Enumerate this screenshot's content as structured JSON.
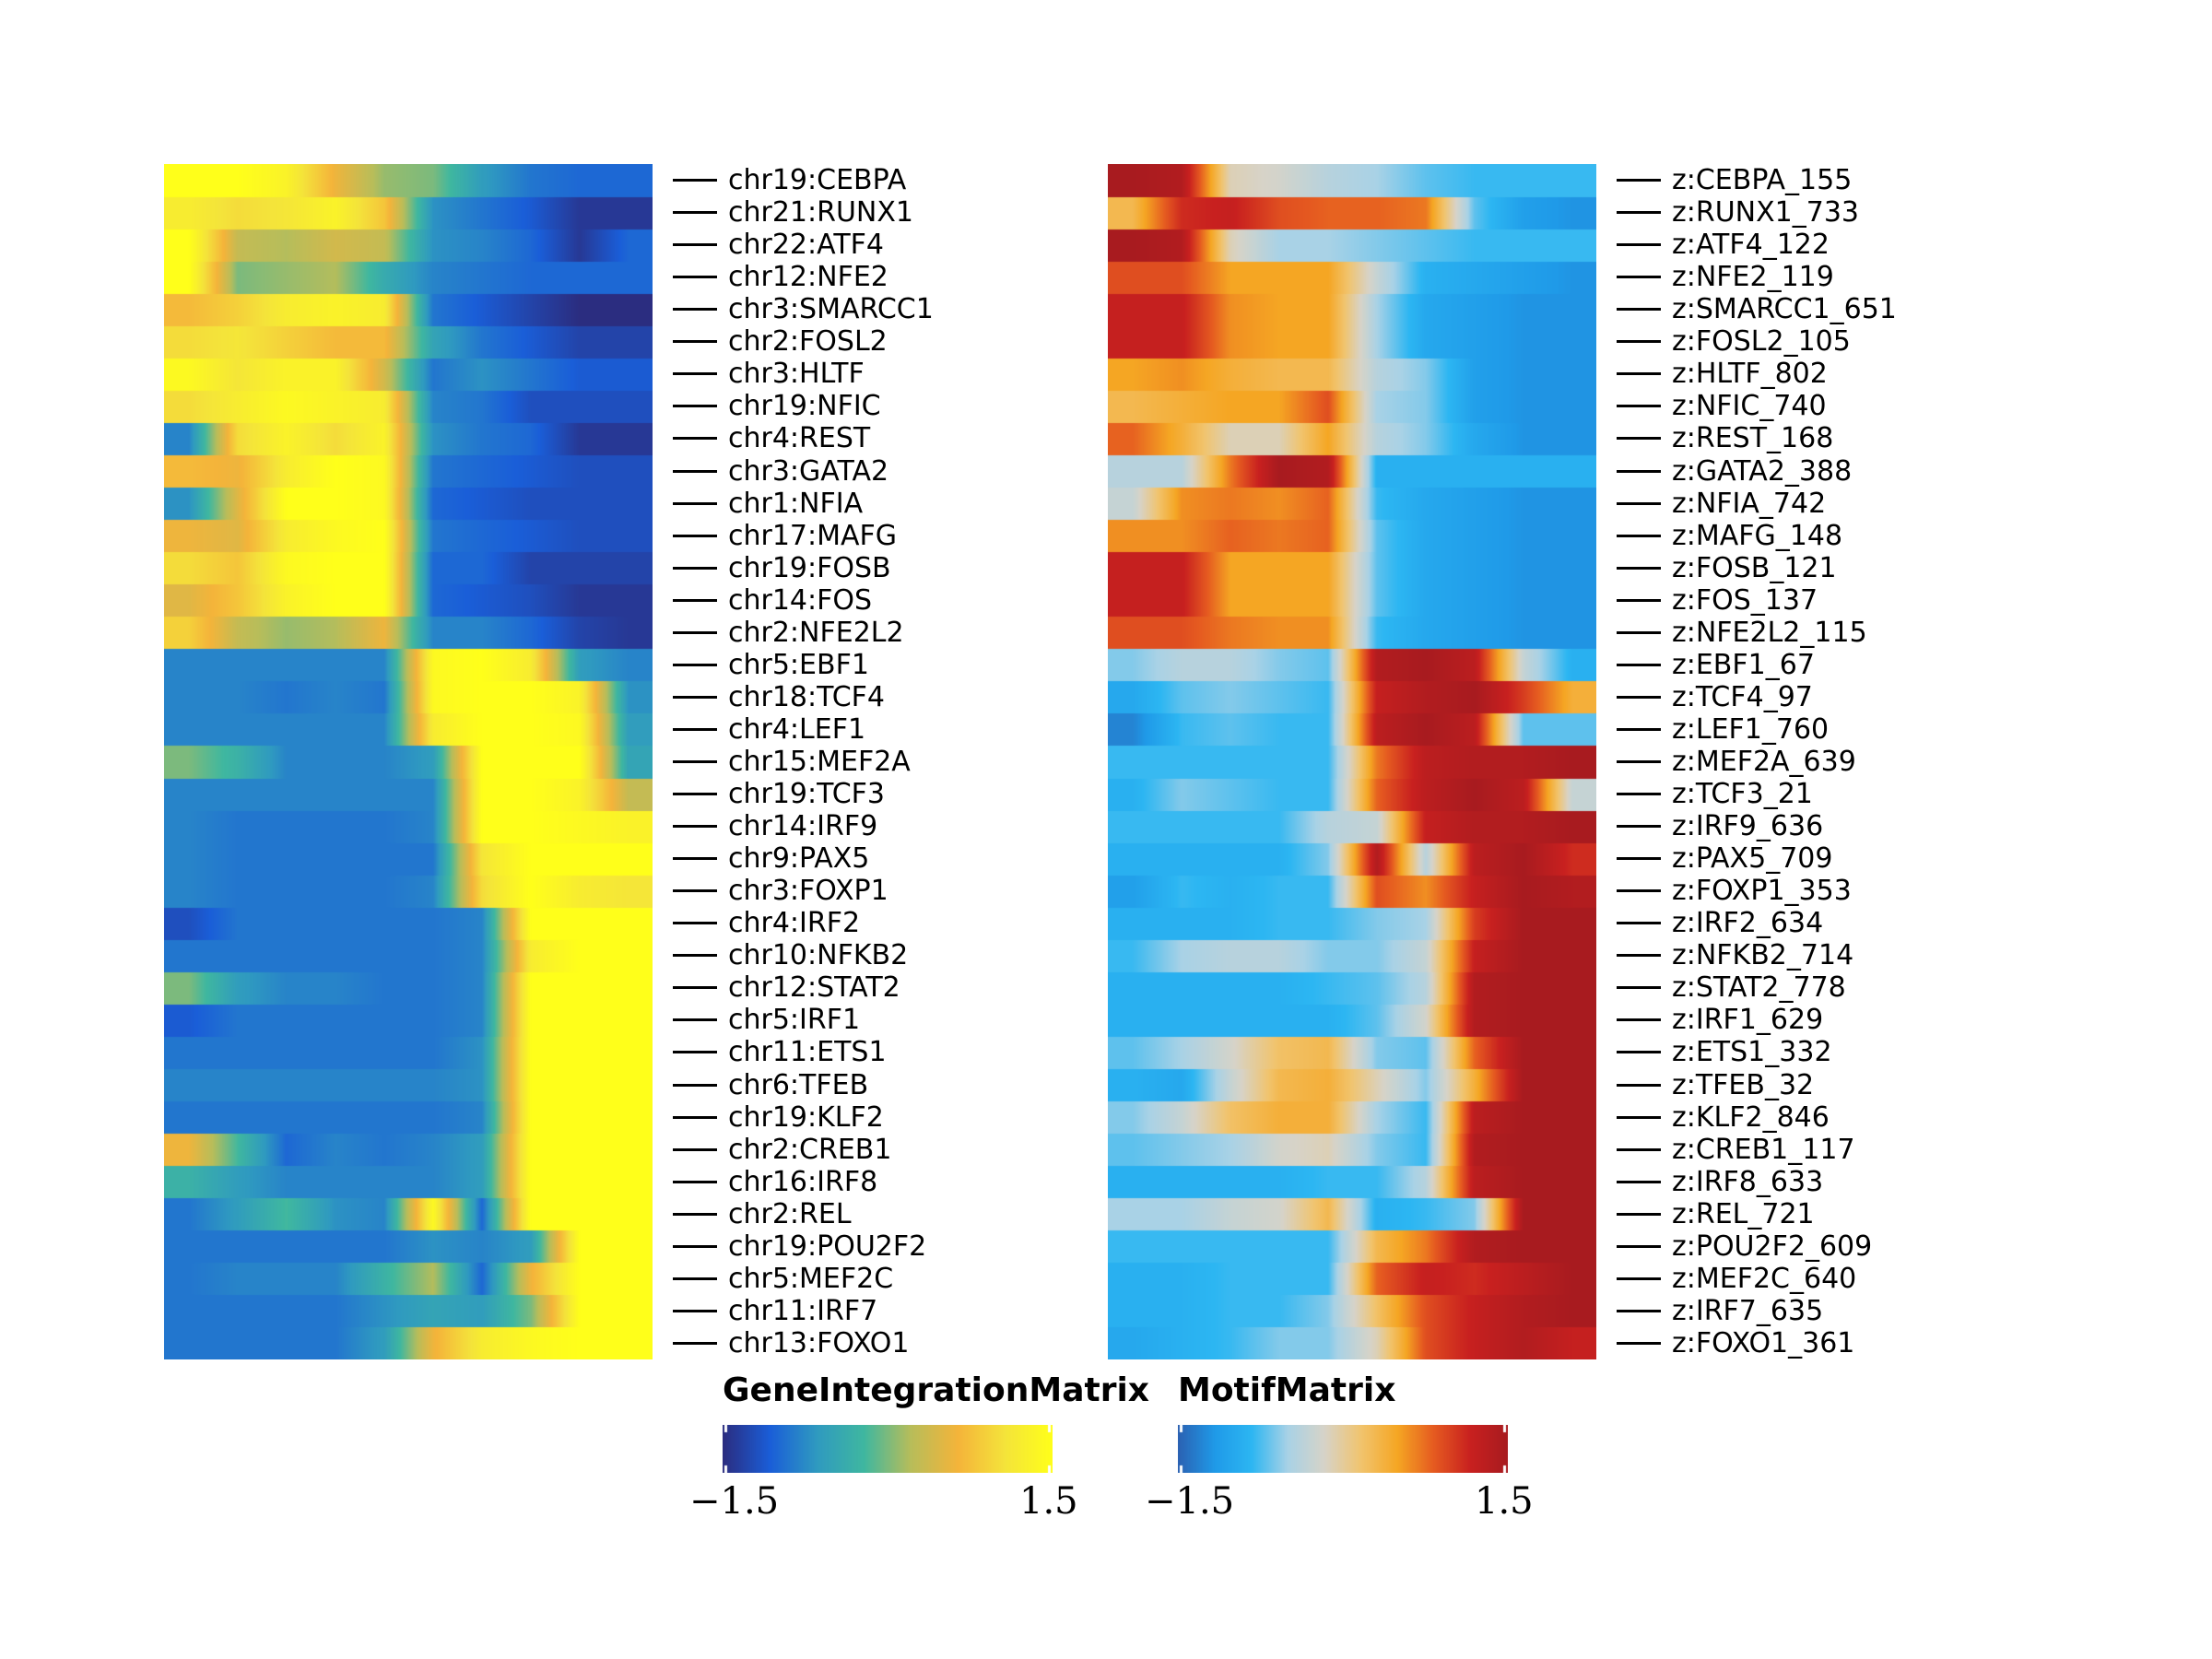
{
  "chart_data": [
    {
      "type": "heatmap",
      "name": "GeneIntegrationMatrix",
      "legend_title": "GeneIntegrationMatrix",
      "scale_min": "−1.5",
      "scale_max": "1.5",
      "value_range": [
        -1.5,
        1.5
      ],
      "colors": [
        "#2b2d80",
        "#1a5ed8",
        "#2f9ac0",
        "#3fb7a0",
        "#b8bd5a",
        "#f4b43a",
        "#f4e43a",
        "#ffff1a"
      ],
      "rows": [
        "chr19:CEBPA",
        "chr21:RUNX1",
        "chr22:ATF4",
        "chr12:NFE2",
        "chr3:SMARCC1",
        "chr2:FOSL2",
        "chr3:HLTF",
        "chr19:NFIC",
        "chr4:REST",
        "chr3:GATA2",
        "chr1:NFIA",
        "chr17:MAFG",
        "chr19:FOSB",
        "chr14:FOS",
        "chr2:NFE2L2",
        "chr5:EBF1",
        "chr18:TCF4",
        "chr4:LEF1",
        "chr15:MEF2A",
        "chr19:TCF3",
        "chr14:IRF9",
        "chr9:PAX5",
        "chr3:FOXP1",
        "chr4:IRF2",
        "chr10:NFKB2",
        "chr12:STAT2",
        "chr5:IRF1",
        "chr11:ETS1",
        "chr6:TFEB",
        "chr19:KLF2",
        "chr2:CREB1",
        "chr16:IRF8",
        "chr2:REL",
        "chr19:POU2F2",
        "chr5:MEF2C",
        "chr11:IRF7",
        "chr13:FOXO1"
      ],
      "columns_description": "pseudotime bins",
      "values": [
        [
          1.5,
          1.5,
          1.3,
          0.6,
          0.1,
          0.0,
          -0.6,
          -0.9,
          -1.0,
          -1.0
        ],
        [
          1.2,
          1.0,
          1.1,
          1.3,
          0.8,
          -0.7,
          -0.9,
          -1.1,
          -1.4,
          -1.4
        ],
        [
          1.5,
          0.3,
          0.2,
          0.4,
          0.3,
          -0.7,
          -0.8,
          -1.0,
          -1.4,
          -1.0
        ],
        [
          1.5,
          0.0,
          0.1,
          0.2,
          -0.4,
          -0.8,
          -0.9,
          -1.0,
          -1.0,
          -1.0
        ],
        [
          0.7,
          0.9,
          1.2,
          1.3,
          1.2,
          -0.9,
          -1.1,
          -1.3,
          -1.5,
          -1.5
        ],
        [
          1.0,
          1.1,
          0.9,
          0.7,
          0.7,
          -0.5,
          -0.9,
          -1.1,
          -1.3,
          -1.3
        ],
        [
          1.4,
          1.1,
          1.3,
          1.3,
          0.4,
          -0.9,
          -0.7,
          -0.9,
          -1.1,
          -1.1
        ],
        [
          1.0,
          1.2,
          1.4,
          1.3,
          1.2,
          -0.8,
          -0.9,
          -1.2,
          -1.2,
          -1.2
        ],
        [
          -0.8,
          1.0,
          1.3,
          1.0,
          1.3,
          -0.7,
          -0.9,
          -1.0,
          -1.4,
          -1.4
        ],
        [
          0.7,
          0.6,
          1.2,
          1.5,
          1.4,
          -0.9,
          -1.0,
          -1.1,
          -1.2,
          -1.2
        ],
        [
          -0.7,
          0.5,
          1.5,
          1.5,
          1.4,
          -1.0,
          -1.1,
          -1.2,
          -1.2,
          -1.2
        ],
        [
          0.6,
          0.5,
          1.2,
          1.4,
          1.5,
          -0.9,
          -1.0,
          -1.1,
          -1.2,
          -1.2
        ],
        [
          1.0,
          0.8,
          1.4,
          1.5,
          1.5,
          -1.0,
          -1.0,
          -1.3,
          -1.3,
          -1.3
        ],
        [
          0.5,
          0.8,
          1.3,
          1.5,
          1.5,
          -1.0,
          -1.1,
          -1.2,
          -1.4,
          -1.4
        ],
        [
          0.9,
          0.3,
          0.1,
          0.2,
          0.6,
          -0.8,
          -0.8,
          -1.0,
          -1.3,
          -1.4
        ],
        [
          -0.8,
          -0.8,
          -0.8,
          -0.8,
          -0.8,
          1.4,
          1.5,
          1.2,
          -0.6,
          -0.8
        ],
        [
          -0.8,
          -0.8,
          -0.9,
          -0.8,
          -0.9,
          1.4,
          1.5,
          1.5,
          1.3,
          -0.7
        ],
        [
          -0.8,
          -0.8,
          -0.8,
          -0.8,
          -0.8,
          1.2,
          1.5,
          1.5,
          1.4,
          -0.6
        ],
        [
          0.0,
          -0.3,
          -0.8,
          -0.8,
          -0.8,
          -0.6,
          1.5,
          1.5,
          1.5,
          -0.5
        ],
        [
          -0.8,
          -0.8,
          -0.8,
          -0.8,
          -0.8,
          -0.8,
          1.5,
          1.5,
          1.3,
          0.3
        ],
        [
          -0.8,
          -0.9,
          -0.9,
          -0.9,
          -0.9,
          -0.8,
          1.5,
          1.5,
          1.4,
          1.3
        ],
        [
          -0.8,
          -0.9,
          -0.9,
          -0.9,
          -0.9,
          -0.9,
          1.1,
          1.5,
          1.5,
          1.5
        ],
        [
          -0.8,
          -0.9,
          -0.9,
          -0.9,
          -0.9,
          -0.8,
          1.0,
          1.5,
          1.2,
          1.1
        ],
        [
          -1.2,
          -0.9,
          -0.9,
          -0.9,
          -0.9,
          -0.9,
          -0.8,
          1.5,
          1.5,
          1.5
        ],
        [
          -0.9,
          -0.9,
          -0.9,
          -0.9,
          -0.9,
          -0.9,
          -0.8,
          1.2,
          1.5,
          1.5
        ],
        [
          0.0,
          -0.6,
          -0.8,
          -0.8,
          -0.9,
          -0.9,
          -0.8,
          1.5,
          1.5,
          1.5
        ],
        [
          -1.1,
          -0.9,
          -0.9,
          -0.9,
          -0.9,
          -0.9,
          -0.8,
          1.5,
          1.5,
          1.5
        ],
        [
          -0.9,
          -0.9,
          -0.9,
          -0.9,
          -0.9,
          -0.9,
          -0.7,
          1.5,
          1.5,
          1.5
        ],
        [
          -0.8,
          -0.8,
          -0.8,
          -0.8,
          -0.8,
          -0.8,
          -0.7,
          1.5,
          1.5,
          1.5
        ],
        [
          -0.9,
          -0.9,
          -0.9,
          -0.9,
          -0.9,
          -0.9,
          -0.8,
          1.5,
          1.5,
          1.5
        ],
        [
          0.6,
          -0.2,
          -1.0,
          -0.8,
          -0.9,
          -0.8,
          -0.6,
          1.5,
          1.5,
          1.5
        ],
        [
          -0.3,
          -0.6,
          -0.8,
          -0.8,
          -0.8,
          -0.8,
          -0.6,
          1.5,
          1.5,
          1.5
        ],
        [
          -0.9,
          -0.6,
          -0.2,
          -0.7,
          -0.8,
          1.4,
          -1.0,
          1.5,
          1.5,
          1.5
        ],
        [
          -0.9,
          -0.9,
          -0.9,
          -0.9,
          -0.9,
          -0.7,
          -0.8,
          -0.6,
          1.5,
          1.5
        ],
        [
          -0.9,
          -0.8,
          -0.8,
          -0.8,
          -0.3,
          0.2,
          -1.0,
          0.6,
          1.5,
          1.5
        ],
        [
          -0.9,
          -0.9,
          -0.9,
          -0.9,
          -0.7,
          -0.5,
          -0.6,
          0.0,
          1.5,
          1.5
        ],
        [
          -0.9,
          -0.9,
          -0.9,
          -0.9,
          -0.6,
          0.6,
          1.2,
          1.4,
          1.5,
          1.5
        ]
      ]
    },
    {
      "type": "heatmap",
      "name": "MotifMatrix",
      "legend_title": "MotifMatrix",
      "scale_min": "−1.5",
      "scale_max": "1.5",
      "value_range": [
        -1.5,
        1.5
      ],
      "colors": [
        "#2b62b3",
        "#1f9ae8",
        "#2cb6f2",
        "#a9d2e6",
        "#d7d3c8",
        "#f1c46e",
        "#f5a623",
        "#e55a20",
        "#c8201f",
        "#a81b1f"
      ],
      "rows": [
        "z:CEBPA_155",
        "z:RUNX1_733",
        "z:ATF4_122",
        "z:NFE2_119",
        "z:SMARCC1_651",
        "z:FOSL2_105",
        "z:HLTF_802",
        "z:NFIC_740",
        "z:REST_168",
        "z:GATA2_388",
        "z:NFIA_742",
        "z:MAFG_148",
        "z:FOSB_121",
        "z:FOS_137",
        "z:NFE2L2_115",
        "z:EBF1_67",
        "z:TCF4_97",
        "z:LEF1_760",
        "z:MEF2A_639",
        "z:TCF3_21",
        "z:IRF9_636",
        "z:PAX5_709",
        "z:FOXP1_353",
        "z:IRF2_634",
        "z:NFKB2_714",
        "z:STAT2_778",
        "z:IRF1_629",
        "z:ETS1_332",
        "z:TFEB_32",
        "z:KLF2_846",
        "z:CREB1_117",
        "z:IRF8_633",
        "z:REL_721",
        "z:POU2F2_609",
        "z:MEF2C_640",
        "z:IRF7_635",
        "z:FOXO1_361"
      ],
      "columns_description": "pseudotime bins",
      "values": [
        [
          1.5,
          1.4,
          -0.1,
          -0.2,
          -0.4,
          -0.5,
          -0.7,
          -0.8,
          -0.8,
          -0.8
        ],
        [
          0.3,
          1.1,
          1.2,
          0.9,
          0.8,
          0.8,
          0.7,
          -0.7,
          -1.1,
          -1.2
        ],
        [
          1.5,
          1.4,
          -0.1,
          -0.5,
          -0.5,
          -0.6,
          -0.7,
          -0.8,
          -0.8,
          -0.8
        ],
        [
          0.9,
          0.9,
          0.5,
          0.5,
          0.5,
          -0.3,
          -0.9,
          -1.0,
          -1.1,
          -1.2
        ],
        [
          1.2,
          1.2,
          0.6,
          0.5,
          0.5,
          -0.5,
          -1.0,
          -1.1,
          -1.2,
          -1.2
        ],
        [
          1.2,
          1.2,
          0.6,
          0.5,
          0.5,
          -0.5,
          -1.0,
          -1.1,
          -1.2,
          -1.2
        ],
        [
          0.5,
          0.6,
          0.4,
          0.3,
          0.3,
          -0.4,
          -0.6,
          -1.1,
          -1.2,
          -1.2
        ],
        [
          0.3,
          0.4,
          0.5,
          0.5,
          0.9,
          -0.5,
          -0.6,
          -1.1,
          -1.2,
          -1.2
        ],
        [
          0.8,
          0.4,
          -0.1,
          -0.1,
          0.5,
          -0.4,
          -0.6,
          -1.0,
          -1.2,
          -1.2
        ],
        [
          -0.4,
          -0.4,
          0.7,
          1.5,
          1.4,
          -0.9,
          -0.9,
          -0.9,
          -0.9,
          -0.9
        ],
        [
          -0.3,
          0.6,
          0.7,
          0.6,
          0.8,
          -0.8,
          -1.0,
          -1.1,
          -1.2,
          -1.2
        ],
        [
          0.6,
          0.6,
          0.8,
          0.7,
          0.8,
          -0.7,
          -1.0,
          -1.1,
          -1.2,
          -1.2
        ],
        [
          1.2,
          1.2,
          0.5,
          0.5,
          0.5,
          -0.7,
          -1.0,
          -1.1,
          -1.2,
          -1.2
        ],
        [
          1.2,
          1.2,
          0.5,
          0.5,
          0.5,
          -0.7,
          -1.0,
          -1.1,
          -1.2,
          -1.2
        ],
        [
          0.9,
          0.9,
          0.7,
          0.6,
          0.6,
          -0.8,
          -1.0,
          -1.1,
          -1.2,
          -1.2
        ],
        [
          -0.6,
          -0.4,
          -0.4,
          -0.6,
          -0.7,
          1.4,
          1.5,
          1.3,
          -0.3,
          -0.9
        ],
        [
          -1.0,
          -0.7,
          -0.6,
          -0.7,
          -0.8,
          1.2,
          1.4,
          1.5,
          1.0,
          0.4
        ],
        [
          -1.3,
          -0.8,
          -0.7,
          -0.8,
          -0.8,
          1.3,
          1.5,
          1.3,
          -0.7,
          -0.7
        ],
        [
          -0.8,
          -0.8,
          -0.8,
          -0.8,
          -0.8,
          0.7,
          1.3,
          1.4,
          1.4,
          1.5
        ],
        [
          -0.9,
          -0.6,
          -0.7,
          -0.8,
          -0.8,
          0.8,
          1.3,
          1.5,
          1.3,
          -0.3
        ],
        [
          -0.8,
          -0.8,
          -0.8,
          -0.8,
          -0.4,
          -0.3,
          1.2,
          1.4,
          1.4,
          1.5
        ],
        [
          -0.9,
          -0.9,
          -0.9,
          -0.9,
          -0.6,
          1.4,
          -0.4,
          1.3,
          1.5,
          1.1
        ],
        [
          -1.1,
          -0.8,
          -0.9,
          -0.8,
          -0.8,
          0.9,
          0.6,
          1.2,
          1.5,
          1.4
        ],
        [
          -0.9,
          -0.9,
          -0.9,
          -0.8,
          -0.8,
          -0.6,
          -0.5,
          1.0,
          1.5,
          1.5
        ],
        [
          -0.8,
          -0.5,
          -0.4,
          -0.4,
          -0.6,
          -0.6,
          -0.3,
          1.2,
          1.5,
          1.5
        ],
        [
          -0.9,
          -0.9,
          -0.9,
          -0.9,
          -0.8,
          -0.7,
          -0.4,
          1.4,
          1.5,
          1.5
        ],
        [
          -0.9,
          -0.9,
          -0.9,
          -0.9,
          -0.9,
          -0.7,
          -0.2,
          1.4,
          1.5,
          1.5
        ],
        [
          -0.7,
          -0.5,
          -0.2,
          0.2,
          0.3,
          -0.6,
          -0.7,
          0.8,
          1.5,
          1.5
        ],
        [
          -0.9,
          -1.0,
          -0.3,
          0.3,
          0.4,
          -0.1,
          -0.6,
          0.4,
          1.5,
          1.5
        ],
        [
          -0.6,
          -0.3,
          0.2,
          0.4,
          0.4,
          -0.5,
          -0.8,
          1.3,
          1.5,
          1.5
        ],
        [
          -0.7,
          -0.6,
          -0.5,
          -0.2,
          -0.1,
          -0.6,
          -0.8,
          1.4,
          1.5,
          1.5
        ],
        [
          -0.9,
          -0.9,
          -0.9,
          -0.9,
          -0.8,
          -0.8,
          -0.4,
          1.3,
          1.5,
          1.5
        ],
        [
          -0.5,
          -0.5,
          -0.3,
          -0.2,
          0.3,
          -0.9,
          -0.8,
          -0.6,
          1.5,
          1.5
        ],
        [
          -0.8,
          -0.8,
          -0.8,
          -0.8,
          -0.8,
          0.3,
          0.7,
          1.4,
          1.5,
          1.5
        ],
        [
          -0.9,
          -0.9,
          -0.8,
          -0.8,
          -0.8,
          0.8,
          1.2,
          1.1,
          1.3,
          1.5
        ],
        [
          -0.9,
          -0.9,
          -0.8,
          -0.8,
          -0.6,
          0.2,
          0.9,
          1.2,
          1.4,
          1.5
        ],
        [
          -1.0,
          -0.9,
          -0.8,
          -0.6,
          -0.6,
          -0.1,
          0.9,
          1.2,
          1.4,
          1.2
        ]
      ]
    }
  ]
}
